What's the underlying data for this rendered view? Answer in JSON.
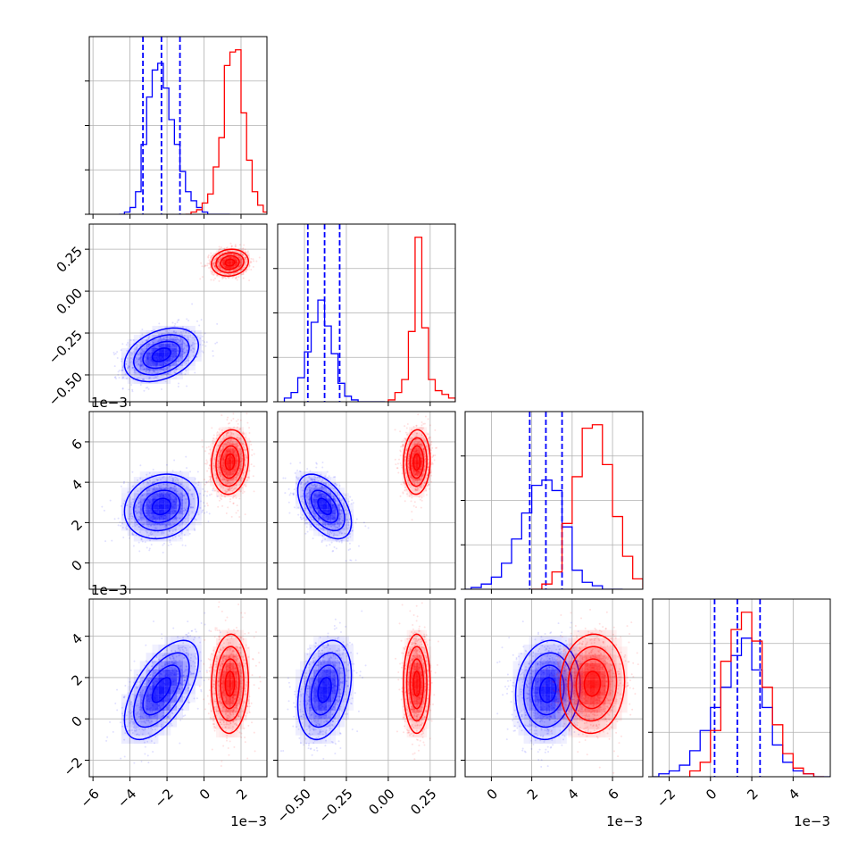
{
  "chart_data": {
    "type": "corner",
    "n_params": 4,
    "grid": true,
    "series": [
      {
        "color": "#0000ff",
        "role": "blue-posterior",
        "marginals": [
          {
            "bins": [
              -4.6,
              -4.3,
              -4.0,
              -3.7,
              -3.4,
              -3.1,
              -2.8,
              -2.5,
              -2.2,
              -1.9,
              -1.6,
              -1.3,
              -1.0,
              -0.7,
              -0.4,
              -0.1,
              0.2,
              0.5,
              0.8,
              1.1
            ],
            "counts": [
              0.0,
              0.01,
              0.03,
              0.1,
              0.31,
              0.52,
              0.64,
              0.67,
              0.56,
              0.42,
              0.31,
              0.19,
              0.1,
              0.06,
              0.03,
              0.01,
              0.0,
              0.0,
              0.0,
              0.0
            ],
            "quantiles": [
              -3.3,
              -2.3,
              -1.3
            ]
          },
          {
            "bins": [
              -0.62,
              -0.58,
              -0.54,
              -0.5,
              -0.46,
              -0.42,
              -0.38,
              -0.34,
              -0.3,
              -0.26,
              -0.22,
              -0.18,
              -0.14,
              -0.1,
              -0.06
            ],
            "counts": [
              0.02,
              0.05,
              0.13,
              0.27,
              0.43,
              0.55,
              0.41,
              0.26,
              0.1,
              0.03,
              0.01,
              0.0,
              0.0,
              0.0,
              0.0
            ],
            "quantiles": [
              -0.48,
              -0.38,
              -0.29
            ]
          },
          {
            "bins": [
              -1.5,
              -1.0,
              -0.5,
              0.0,
              0.5,
              1.0,
              1.5,
              2.0,
              2.5,
              3.0,
              3.5,
              4.0,
              4.5,
              5.0,
              5.5,
              6.0
            ],
            "counts": [
              0.0,
              0.01,
              0.03,
              0.07,
              0.15,
              0.29,
              0.44,
              0.6,
              0.63,
              0.57,
              0.36,
              0.11,
              0.04,
              0.02,
              0.0,
              0.0
            ],
            "quantiles": [
              1.9,
              2.7,
              3.5
            ]
          },
          {
            "bins": [
              -3.0,
              -2.5,
              -2.0,
              -1.5,
              -1.0,
              -0.5,
              0.0,
              0.5,
              1.0,
              1.5,
              2.0,
              2.5,
              3.0,
              3.5,
              4.0,
              4.5,
              5.0,
              5.5
            ],
            "counts": [
              0.0,
              0.01,
              0.02,
              0.04,
              0.09,
              0.16,
              0.24,
              0.31,
              0.42,
              0.48,
              0.37,
              0.24,
              0.11,
              0.05,
              0.02,
              0.01,
              0.0,
              0.0
            ],
            "quantiles": [
              0.2,
              1.3,
              2.4
            ]
          }
        ],
        "means": [
          -2.3,
          -0.38,
          2.8,
          1.4
        ],
        "sds": [
          1.0,
          0.08,
          0.8,
          1.2
        ],
        "correlations": {
          "1-0": 0.35,
          "2-0": 0.15,
          "2-1": -0.5,
          "3-0": 0.6,
          "3-1": 0.3,
          "3-2": 0.1
        }
      },
      {
        "color": "#ff0000",
        "role": "red-posterior",
        "marginals": [
          {
            "bins": [
              -1.0,
              -0.7,
              -0.4,
              -0.1,
              0.2,
              0.5,
              0.8,
              1.1,
              1.4,
              1.7,
              2.0,
              2.3,
              2.6,
              2.9,
              3.2
            ],
            "counts": [
              0.0,
              0.01,
              0.02,
              0.05,
              0.09,
              0.21,
              0.34,
              0.66,
              0.72,
              0.73,
              0.45,
              0.24,
              0.1,
              0.04,
              0.01
            ],
            "quantiles": []
          },
          {
            "bins": [
              0.0,
              0.04,
              0.08,
              0.12,
              0.16,
              0.2,
              0.24,
              0.28,
              0.32,
              0.36,
              0.4
            ],
            "counts": [
              0.01,
              0.05,
              0.12,
              0.38,
              0.89,
              0.4,
              0.12,
              0.06,
              0.04,
              0.02,
              0.0
            ],
            "quantiles": []
          },
          {
            "bins": [
              2.0,
              2.5,
              3.0,
              3.5,
              4.0,
              4.5,
              5.0,
              5.5,
              6.0,
              6.5,
              7.0,
              7.5
            ],
            "counts": [
              0.0,
              0.03,
              0.1,
              0.38,
              0.65,
              0.93,
              0.95,
              0.72,
              0.42,
              0.19,
              0.06,
              0.01
            ],
            "quantiles": []
          },
          {
            "bins": [
              -1.0,
              -0.5,
              0.0,
              0.5,
              1.0,
              1.5,
              2.0,
              2.5,
              3.0,
              3.5,
              4.0,
              4.5,
              5.0
            ],
            "counts": [
              0.02,
              0.05,
              0.16,
              0.4,
              0.51,
              0.57,
              0.47,
              0.31,
              0.18,
              0.08,
              0.03,
              0.01,
              0.0
            ],
            "quantiles": []
          }
        ],
        "means": [
          1.4,
          0.17,
          5.0,
          1.7
        ],
        "sds": [
          0.5,
          0.04,
          0.8,
          1.2
        ],
        "correlations": {
          "1-0": 0.1,
          "2-0": 0.1,
          "2-1": 0.05,
          "3-0": 0.05,
          "3-1": 0.0,
          "3-2": 0.05
        }
      }
    ],
    "axes": [
      {
        "lim": [
          -6.2,
          3.4
        ],
        "ticks": [
          -6,
          -4,
          -2,
          0,
          2
        ],
        "ticklabels": [
          "−6",
          "−4",
          "−2",
          "0",
          "2"
        ],
        "offset": "1e−3"
      },
      {
        "lim": [
          -0.66,
          0.4
        ],
        "ticks": [
          -0.5,
          -0.25,
          0.0,
          0.25
        ],
        "ticklabels": [
          "−0.50",
          "−0.25",
          "0.00",
          "0.25"
        ],
        "offset": ""
      },
      {
        "lim": [
          -1.3,
          7.5
        ],
        "ticks": [
          0,
          2,
          4,
          6
        ],
        "ticklabels": [
          "0",
          "2",
          "4",
          "6"
        ],
        "offset": "1e−3"
      },
      {
        "lim": [
          -2.8,
          5.8
        ],
        "ticks": [
          -2,
          0,
          2,
          4
        ],
        "ticklabels": [
          "−2",
          "0",
          "2",
          "4"
        ],
        "offset": "1e−3"
      }
    ],
    "y_offset_labels": [
      "1e−3",
      "1e−3"
    ]
  }
}
